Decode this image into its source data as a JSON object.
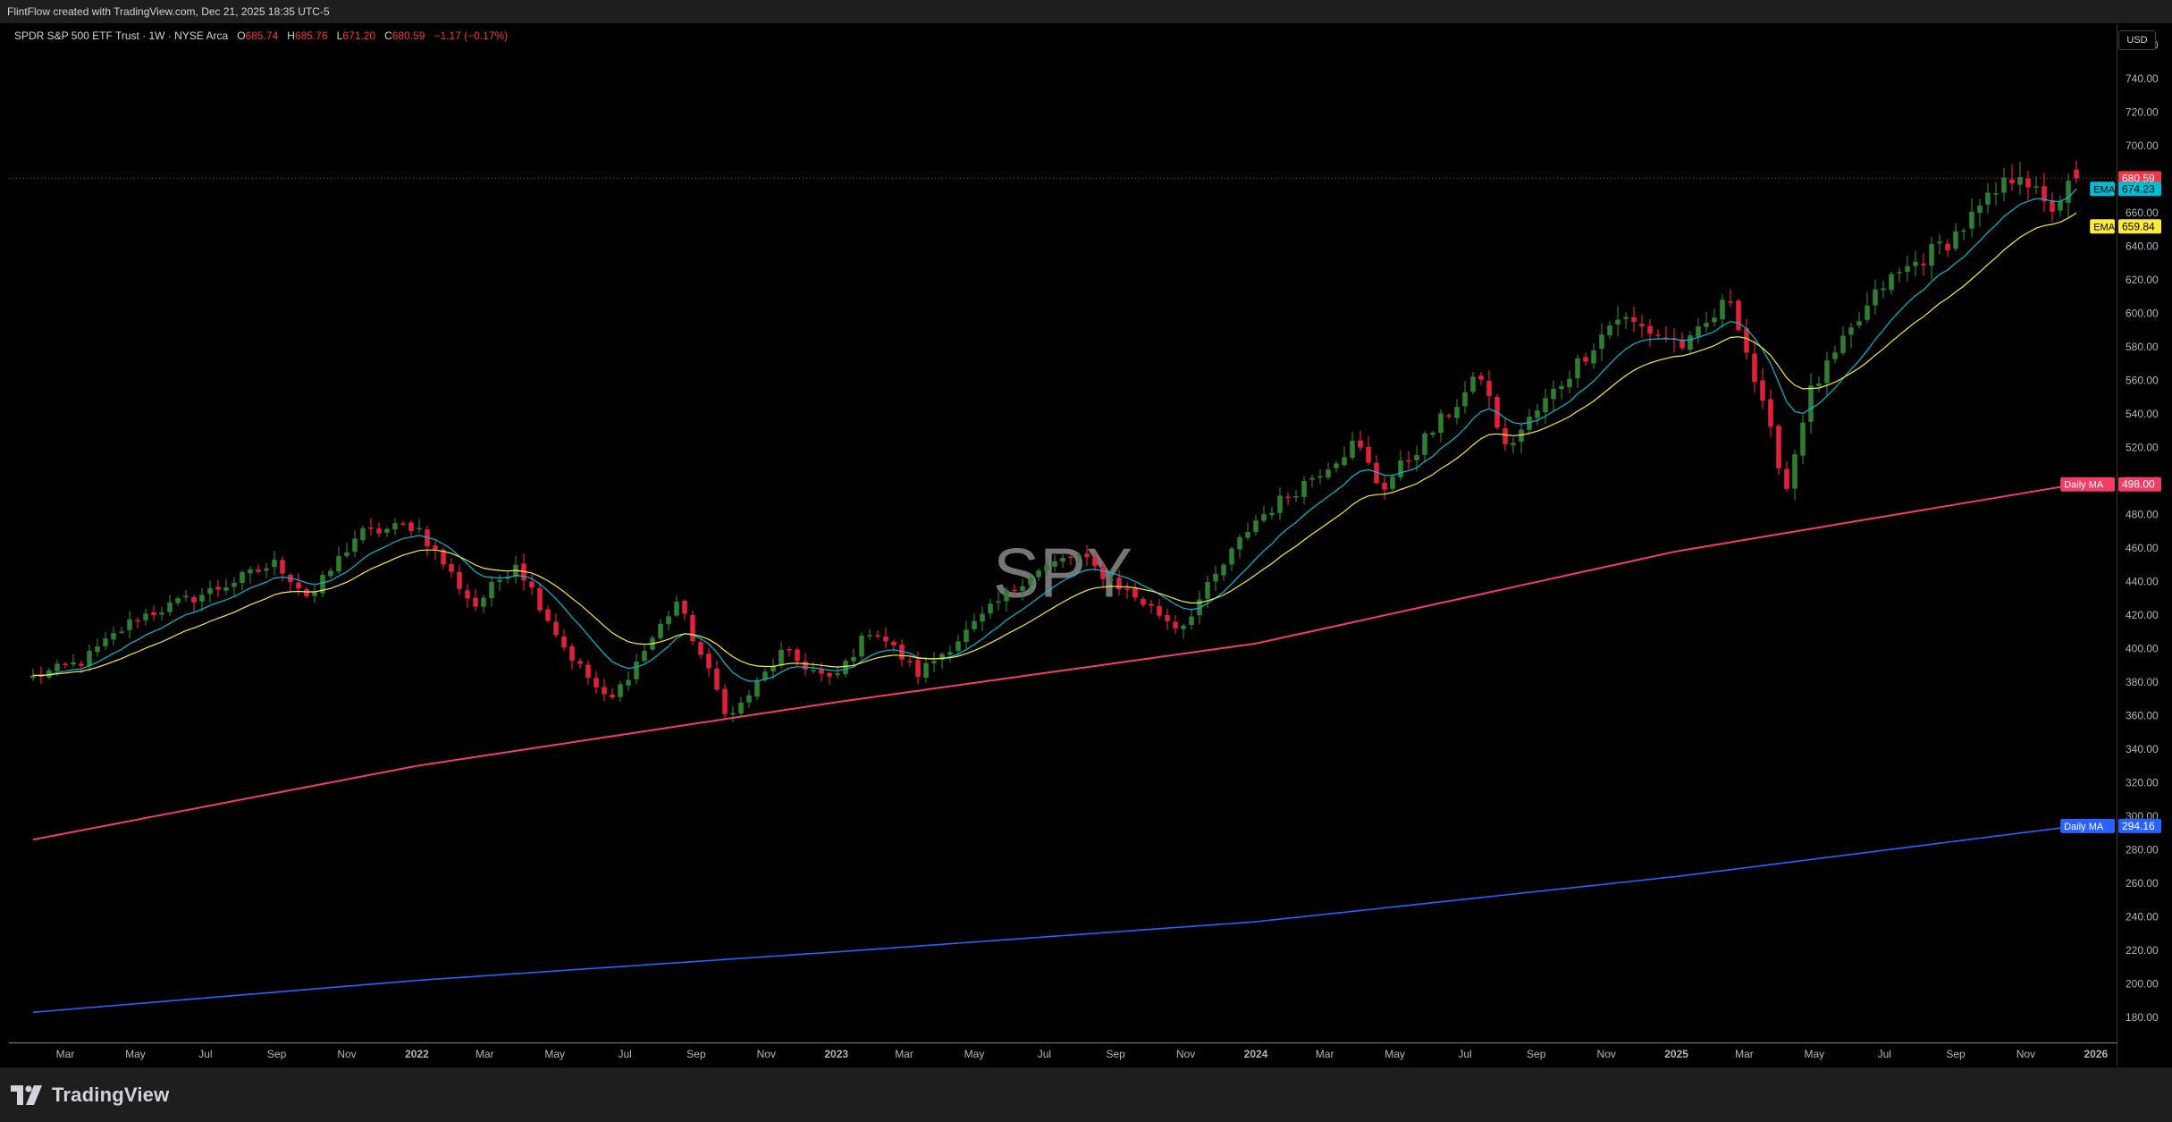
{
  "header": {
    "text": "FlintFlow created with TradingView.com, Dec 21, 2025 18:35 UTC-5"
  },
  "legend": {
    "symbol": "SPDR S&P 500 ETF Trust · 1W · NYSE Arca",
    "o_label": "O",
    "o_val": "685.74",
    "h_label": "H",
    "h_val": "685.76",
    "l_label": "L",
    "l_val": "671.20",
    "c_label": "C",
    "c_val": "680.59",
    "change": "−1.17 (−0.17%)"
  },
  "currency": "USD",
  "watermark": "SPY",
  "footer": {
    "brand": "TradingView"
  },
  "colors": {
    "up": "#26a69a",
    "up_body": "#2e7d32",
    "down": "#f23645",
    "ema_fast": "#00bcd4",
    "ema_slow": "#ffeb3b",
    "ma_red": "#f23e66",
    "ma_blue": "#2962ff",
    "grid_text": "#b2b5be"
  },
  "chart_data": {
    "type": "candlestick",
    "ylim": [
      165,
      772
    ],
    "y_ticks": [
      180,
      200,
      220,
      240,
      260,
      280,
      300,
      320,
      340,
      360,
      380,
      400,
      420,
      440,
      460,
      480,
      500,
      520,
      540,
      560,
      580,
      600,
      620,
      640,
      660,
      680,
      700,
      720,
      740,
      760
    ],
    "x_tick_labels": [
      {
        "label": "Mar",
        "date": "2021-03"
      },
      {
        "label": "May",
        "date": "2021-05"
      },
      {
        "label": "Jul",
        "date": "2021-07"
      },
      {
        "label": "Sep",
        "date": "2021-09"
      },
      {
        "label": "Nov",
        "date": "2021-11"
      },
      {
        "label": "2022",
        "date": "2022-01",
        "bold": true
      },
      {
        "label": "Mar",
        "date": "2022-03"
      },
      {
        "label": "May",
        "date": "2022-05"
      },
      {
        "label": "Jul",
        "date": "2022-07"
      },
      {
        "label": "Sep",
        "date": "2022-09"
      },
      {
        "label": "Nov",
        "date": "2022-11"
      },
      {
        "label": "2023",
        "date": "2023-01",
        "bold": true
      },
      {
        "label": "Mar",
        "date": "2023-03"
      },
      {
        "label": "May",
        "date": "2023-05"
      },
      {
        "label": "Jul",
        "date": "2023-07"
      },
      {
        "label": "Sep",
        "date": "2023-09"
      },
      {
        "label": "Nov",
        "date": "2023-11"
      },
      {
        "label": "2024",
        "date": "2024-01",
        "bold": true
      },
      {
        "label": "Mar",
        "date": "2024-03"
      },
      {
        "label": "May",
        "date": "2024-05"
      },
      {
        "label": "Jul",
        "date": "2024-07"
      },
      {
        "label": "Sep",
        "date": "2024-09"
      },
      {
        "label": "Nov",
        "date": "2024-11"
      },
      {
        "label": "2025",
        "date": "2025-01",
        "bold": true
      },
      {
        "label": "Mar",
        "date": "2025-03"
      },
      {
        "label": "May",
        "date": "2025-05"
      },
      {
        "label": "Jul",
        "date": "2025-07"
      },
      {
        "label": "Sep",
        "date": "2025-09"
      },
      {
        "label": "Nov",
        "date": "2025-11"
      },
      {
        "label": "2026",
        "date": "2026-01",
        "bold": true
      }
    ],
    "first_candle_date": "2021-02-01",
    "last_candle_date": "2025-12-15",
    "close_anchors": [
      [
        "2021-02-01",
        383
      ],
      [
        "2021-03-15",
        392
      ],
      [
        "2021-05-01",
        418
      ],
      [
        "2021-07-01",
        433
      ],
      [
        "2021-09-01",
        451
      ],
      [
        "2021-09-30",
        430
      ],
      [
        "2021-11-10",
        468
      ],
      [
        "2021-12-31",
        474
      ],
      [
        "2022-02-20",
        425
      ],
      [
        "2022-03-28",
        452
      ],
      [
        "2022-05-10",
        400
      ],
      [
        "2022-06-17",
        367
      ],
      [
        "2022-08-15",
        428
      ],
      [
        "2022-09-30",
        358
      ],
      [
        "2022-11-15",
        398
      ],
      [
        "2022-12-28",
        380
      ],
      [
        "2023-02-01",
        413
      ],
      [
        "2023-03-13",
        385
      ],
      [
        "2023-04-28",
        412
      ],
      [
        "2023-06-15",
        443
      ],
      [
        "2023-07-28",
        456
      ],
      [
        "2023-10-27",
        412
      ],
      [
        "2023-12-29",
        475
      ],
      [
        "2024-03-28",
        523
      ],
      [
        "2024-04-19",
        495
      ],
      [
        "2024-07-15",
        563
      ],
      [
        "2024-08-05",
        519
      ],
      [
        "2024-11-10",
        598
      ],
      [
        "2025-01-10",
        580
      ],
      [
        "2025-02-18",
        610
      ],
      [
        "2025-03-12",
        555
      ],
      [
        "2025-04-07",
        496
      ],
      [
        "2025-04-25",
        550
      ],
      [
        "2025-06-30",
        617
      ],
      [
        "2025-08-29",
        645
      ],
      [
        "2025-10-27",
        686
      ],
      [
        "2025-11-20",
        660
      ],
      [
        "2025-12-15",
        680.59
      ]
    ],
    "series": [
      {
        "name": "EMA",
        "last": 674.23,
        "label_value": "674.23"
      },
      {
        "name": "EMA",
        "last": 659.84,
        "label_value": "659.84"
      },
      {
        "name": "Daily MA",
        "label_value": "498.00",
        "points": [
          [
            "2021-02-01",
            286
          ],
          [
            "2022-01-01",
            330
          ],
          [
            "2023-01-01",
            368
          ],
          [
            "2024-01-01",
            403
          ],
          [
            "2025-01-01",
            458
          ],
          [
            "2025-12-15",
            498
          ]
        ]
      },
      {
        "name": "Daily MA",
        "label_value": "294.16",
        "points": [
          [
            "2021-02-01",
            183
          ],
          [
            "2022-01-01",
            202
          ],
          [
            "2023-01-01",
            219
          ],
          [
            "2024-01-01",
            237
          ],
          [
            "2025-01-01",
            264
          ],
          [
            "2025-12-15",
            294.16
          ]
        ]
      }
    ],
    "last_price": 680.59,
    "last_price_label": "680.59"
  }
}
